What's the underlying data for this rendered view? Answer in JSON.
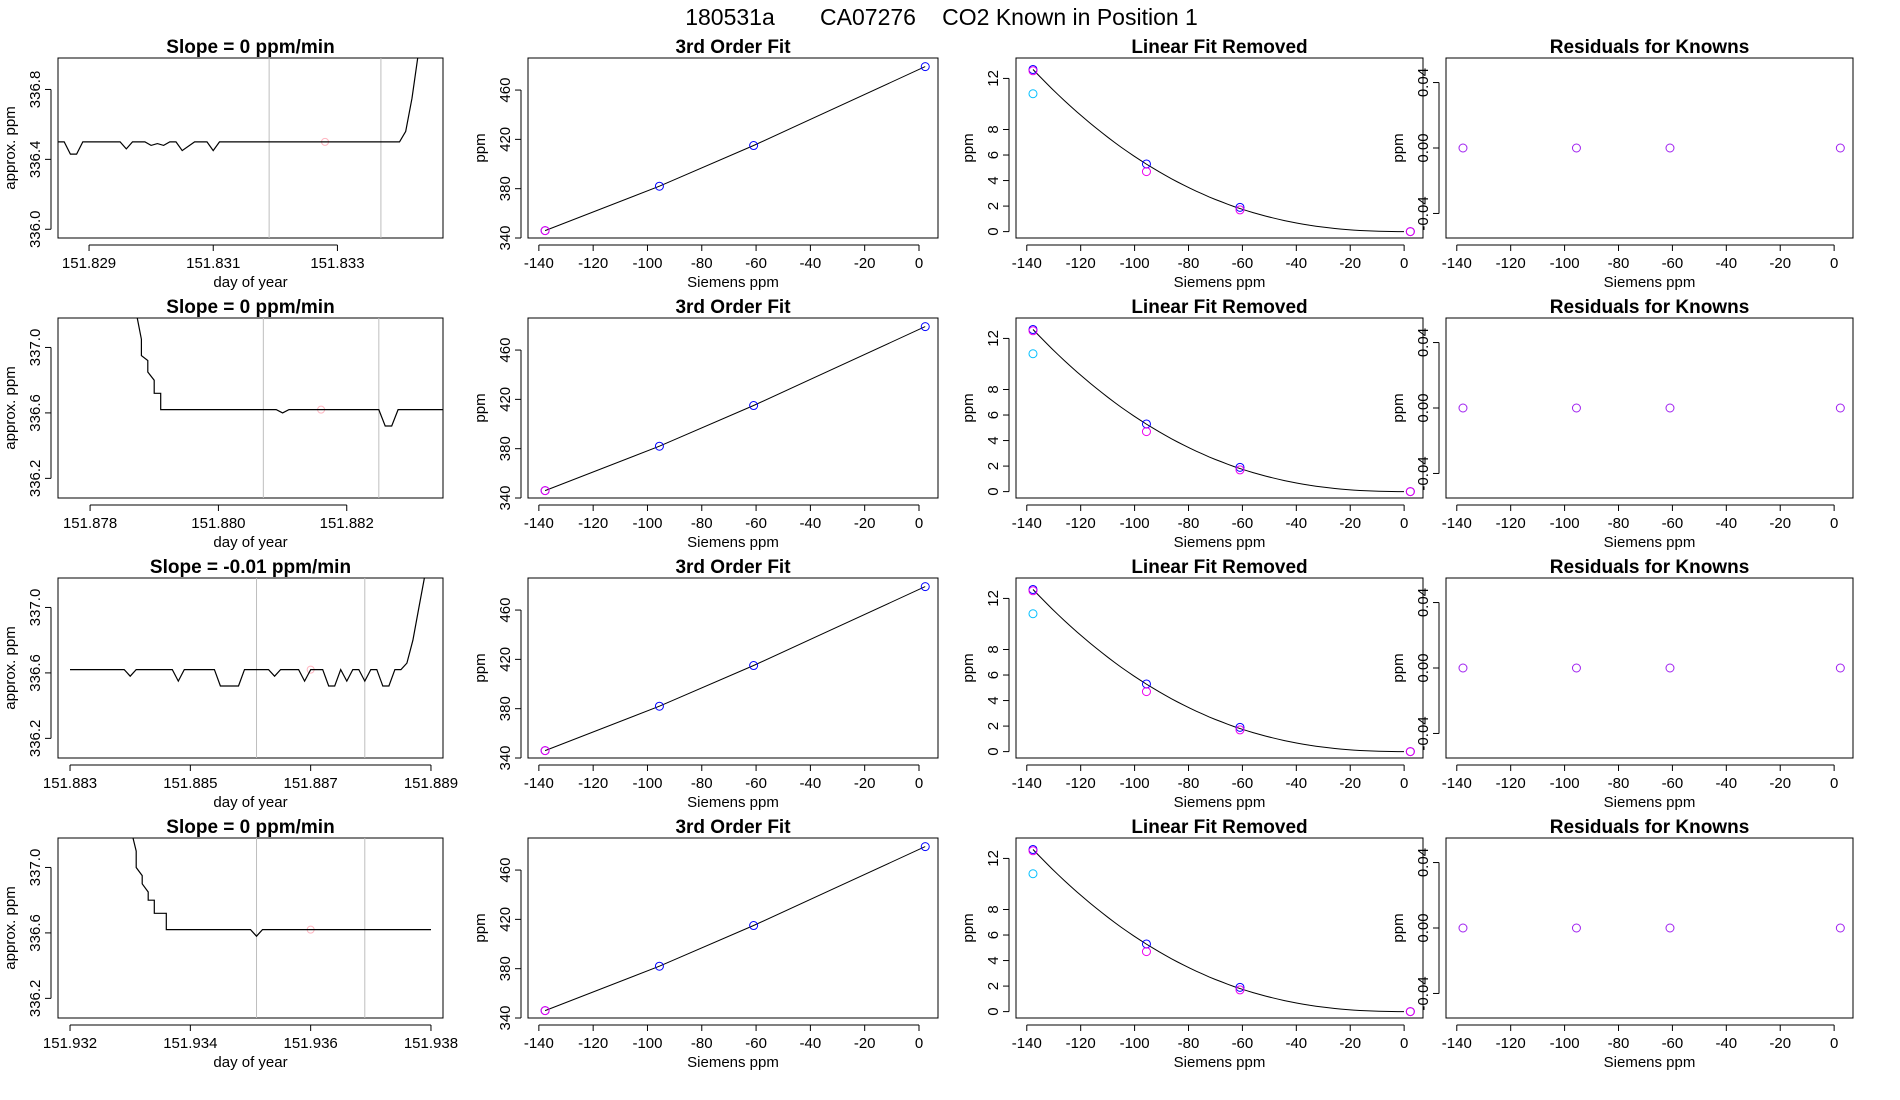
{
  "figure": {
    "title_date": "180531a",
    "title_tank": "CA07276",
    "title_desc": "CO2 Known in Position  1"
  },
  "colors": {
    "trace": "#000000",
    "vline": "#bebebe",
    "marker_pink": "#ffb6c1",
    "known_blue": "#0000ff",
    "raw_cyan": "#00bfff",
    "removed_magenta": "#ee00ee",
    "resid_purple": "#a020f0"
  },
  "chart_data": [
    {
      "type": "line",
      "row": 0,
      "panel": "raw",
      "title": "Slope =  0  ppm/min",
      "xlabel": "day of year",
      "ylabel": "approx. ppm",
      "xlim": [
        151.8285,
        151.8347
      ],
      "ylim": [
        335.95,
        336.98
      ],
      "xticks": [
        151.829,
        151.831,
        151.833
      ],
      "xtick_labels": [
        "151.829",
        "151.831",
        "151.833"
      ],
      "yticks": [
        336.0,
        336.4,
        336.8
      ],
      "ytick_labels": [
        "336.0",
        "336.4",
        "336.8"
      ],
      "vlines": [
        151.8319,
        151.8337
      ],
      "marker": {
        "x": 151.8328,
        "y": 336.5
      },
      "x": [
        151.8285,
        151.8286,
        151.8287,
        151.8288,
        151.8289,
        151.8295,
        151.8296,
        151.8297,
        151.8299,
        151.83,
        151.8301,
        151.8302,
        151.8303,
        151.8304,
        151.8305,
        151.8307,
        151.8308,
        151.8309,
        151.831,
        151.8311,
        151.8312,
        151.8313,
        151.8336,
        151.834,
        151.8341,
        151.8342,
        151.8343,
        151.8344
      ],
      "y": [
        336.5,
        336.5,
        336.43,
        336.43,
        336.5,
        336.5,
        336.46,
        336.5,
        336.5,
        336.48,
        336.49,
        336.48,
        336.5,
        336.5,
        336.45,
        336.5,
        336.5,
        336.5,
        336.45,
        336.5,
        336.5,
        336.5,
        336.5,
        336.5,
        336.56,
        336.75,
        337.0,
        337.2
      ]
    },
    {
      "type": "line",
      "row": 1,
      "panel": "raw",
      "title": "Slope =  0  ppm/min",
      "xlabel": "day of year",
      "ylabel": "approx. ppm",
      "xlim": [
        151.8775,
        151.8835
      ],
      "ylim": [
        336.08,
        337.18
      ],
      "xticks": [
        151.878,
        151.88,
        151.882
      ],
      "xtick_labels": [
        "151.878",
        "151.880",
        "151.882"
      ],
      "yticks": [
        336.2,
        336.6,
        337.0
      ],
      "ytick_labels": [
        "336.2",
        "336.6",
        "337.0"
      ],
      "vlines": [
        151.8807,
        151.8825
      ],
      "marker": {
        "x": 151.8816,
        "y": 336.62
      },
      "x": [
        151.8787,
        151.8788,
        151.8788,
        151.8789,
        151.8789,
        151.879,
        151.879,
        151.8791,
        151.8791,
        151.8809,
        151.881,
        151.8811,
        151.8825,
        151.8826,
        151.8827,
        151.8828,
        151.8835
      ],
      "y": [
        337.25,
        337.05,
        336.95,
        336.92,
        336.85,
        336.8,
        336.72,
        336.72,
        336.62,
        336.62,
        336.6,
        336.62,
        336.62,
        336.52,
        336.52,
        336.62,
        336.62
      ]
    },
    {
      "type": "line",
      "row": 2,
      "panel": "raw",
      "title": "Slope =  -0.01  ppm/min",
      "xlabel": "day of year",
      "ylabel": "approx. ppm",
      "xlim": [
        151.8828,
        151.8892
      ],
      "ylim": [
        336.08,
        337.18
      ],
      "xticks": [
        151.883,
        151.885,
        151.887,
        151.889
      ],
      "xtick_labels": [
        "151.883",
        "151.885",
        "151.887",
        "151.889"
      ],
      "yticks": [
        336.2,
        336.6,
        337.0
      ],
      "ytick_labels": [
        "336.2",
        "336.6",
        "337.0"
      ],
      "vlines": [
        151.8861,
        151.8879
      ],
      "marker": {
        "x": 151.887,
        "y": 336.62
      },
      "x": [
        151.883,
        151.8839,
        151.884,
        151.8841,
        151.8847,
        151.8848,
        151.8849,
        151.8854,
        151.8855,
        151.8856,
        151.8858,
        151.8859,
        151.8863,
        151.8864,
        151.8865,
        151.8868,
        151.8869,
        151.887,
        151.8872,
        151.8873,
        151.8874,
        151.8875,
        151.8876,
        151.8877,
        151.8878,
        151.8879,
        151.888,
        151.8881,
        151.8882,
        151.8883,
        151.8884,
        151.8885,
        151.8886,
        151.8887,
        151.8888,
        151.8889
      ],
      "y": [
        336.62,
        336.62,
        336.58,
        336.62,
        336.62,
        336.55,
        336.62,
        336.62,
        336.52,
        336.52,
        336.52,
        336.62,
        336.62,
        336.58,
        336.62,
        336.62,
        336.55,
        336.62,
        336.62,
        336.52,
        336.52,
        336.62,
        336.55,
        336.62,
        336.62,
        336.55,
        336.62,
        336.62,
        336.52,
        336.52,
        336.62,
        336.62,
        336.66,
        336.8,
        337.0,
        337.2
      ]
    },
    {
      "type": "line",
      "row": 3,
      "panel": "raw",
      "title": "Slope =  0  ppm/min",
      "xlabel": "day of year",
      "ylabel": "approx. ppm",
      "xlim": [
        151.9318,
        151.9382
      ],
      "ylim": [
        336.08,
        337.18
      ],
      "xticks": [
        151.932,
        151.934,
        151.936,
        151.938
      ],
      "xtick_labels": [
        "151.932",
        "151.934",
        "151.936",
        "151.938"
      ],
      "yticks": [
        336.2,
        336.6,
        337.0
      ],
      "ytick_labels": [
        "336.2",
        "336.6",
        "337.0"
      ],
      "vlines": [
        151.9351,
        151.9369
      ],
      "marker": {
        "x": 151.936,
        "y": 336.62
      },
      "x": [
        151.933,
        151.9331,
        151.9331,
        151.9332,
        151.9332,
        151.9333,
        151.9333,
        151.9334,
        151.9334,
        151.9335,
        151.9335,
        151.9336,
        151.9336,
        151.935,
        151.9351,
        151.9352,
        151.938
      ],
      "y": [
        337.25,
        337.1,
        337.0,
        336.95,
        336.9,
        336.85,
        336.8,
        336.8,
        336.72,
        336.72,
        336.72,
        336.72,
        336.62,
        336.62,
        336.58,
        336.62,
        336.62
      ]
    },
    {
      "type": "scatter",
      "panel": "fit3",
      "rows": [
        0,
        1,
        2,
        3
      ],
      "title": "3rd Order Fit",
      "xlabel": "Siemens ppm",
      "ylabel": "ppm",
      "xlim": [
        -144,
        7
      ],
      "ylim": [
        340,
        486
      ],
      "xticks": [
        -140,
        -120,
        -100,
        -80,
        -60,
        -40,
        -20,
        0
      ],
      "xtick_labels": [
        "-140",
        "-120",
        "-100",
        "-80",
        "-60",
        "-40",
        "-20",
        "0"
      ],
      "yticks": [
        340,
        380,
        420,
        460
      ],
      "ytick_labels": [
        "340",
        "380",
        "420",
        "460"
      ],
      "x": [
        -137.7,
        -95.6,
        -60.9,
        2.3
      ],
      "y": [
        346,
        382,
        415,
        479
      ],
      "fit_curve": {
        "x": [
          -137.7,
          -95.6,
          -60.9,
          2.3
        ],
        "y": [
          346,
          382,
          415,
          479
        ]
      }
    },
    {
      "type": "scatter",
      "panel": "linrem",
      "rows": [
        0,
        1,
        2,
        3
      ],
      "title": "Linear Fit Removed",
      "xlabel": "Siemens ppm",
      "ylabel": "ppm",
      "xlim": [
        -144,
        7
      ],
      "ylim": [
        -0.5,
        13.6
      ],
      "xticks": [
        -140,
        -120,
        -100,
        -80,
        -60,
        -40,
        -20,
        0
      ],
      "xtick_labels": [
        "-140",
        "-120",
        "-100",
        "-80",
        "-60",
        "-40",
        "-20",
        "0"
      ],
      "yticks": [
        0,
        2,
        4,
        6,
        8,
        12
      ],
      "ytick_labels": [
        "0",
        "2",
        "4",
        "6",
        "8",
        "12"
      ],
      "series": [
        {
          "name": "known-removed",
          "color": "blue",
          "x": [
            -137.7,
            -95.6,
            -60.9,
            2.3
          ],
          "y": [
            12.7,
            5.3,
            1.9,
            0.0
          ]
        },
        {
          "name": "raw-cyan",
          "color": "cyan",
          "x": [
            -137.7
          ],
          "y": [
            10.8
          ]
        },
        {
          "name": "raw-magenta",
          "color": "magenta",
          "x": [
            -137.7,
            -95.6,
            -60.9,
            2.3
          ],
          "y": [
            12.6,
            4.7,
            1.7,
            0.0
          ]
        }
      ],
      "fit_curve": {
        "x0": -137.7,
        "x1": 2.3,
        "a": 12.7,
        "power": 3
      }
    },
    {
      "type": "scatter",
      "panel": "resid",
      "rows": [
        0,
        1,
        2,
        3
      ],
      "title": "Residuals for Knowns",
      "xlabel": "Siemens ppm",
      "ylabel": "ppm",
      "xlim": [
        -144,
        7
      ],
      "ylim": [
        -0.055,
        0.055
      ],
      "xticks": [
        -140,
        -120,
        -100,
        -80,
        -60,
        -40,
        -20,
        0
      ],
      "xtick_labels": [
        "-140",
        "-120",
        "-100",
        "-80",
        "-60",
        "-40",
        "-20",
        "0"
      ],
      "yticks": [
        -0.04,
        0.0,
        0.04
      ],
      "ytick_labels": [
        "-0.04",
        "0.00",
        "0.04"
      ],
      "x": [
        -137.7,
        -95.6,
        -60.9,
        2.3
      ],
      "y": [
        0.0,
        0.0,
        0.0,
        0.0
      ]
    }
  ]
}
